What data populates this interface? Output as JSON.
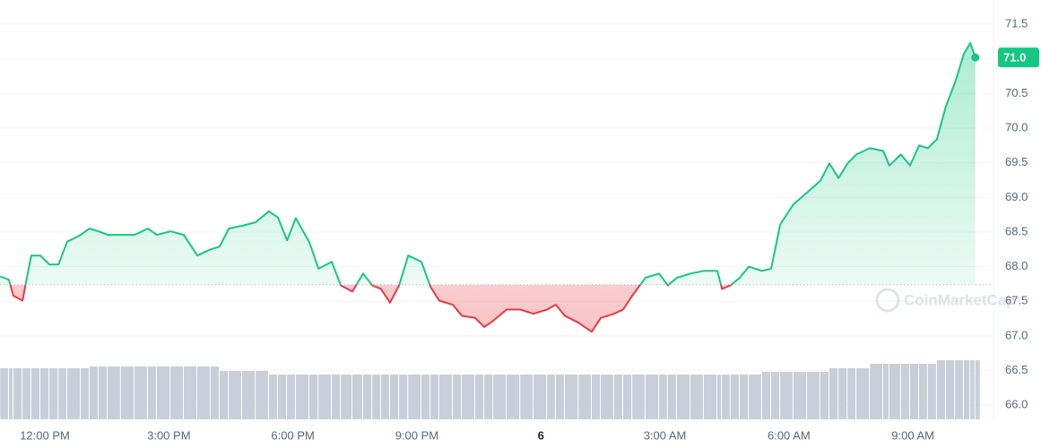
{
  "chart_data": {
    "type": "line",
    "watermark": "CoinMarketCap",
    "color_up": "#16c784",
    "color_down": "#ea3943",
    "volume_color": "#c9ced8",
    "baseline": 67.74,
    "last_price": {
      "value": 71.02,
      "label": "71.0"
    },
    "x": [
      -1.08,
      -0.87,
      -0.76,
      -0.54,
      -0.33,
      -0.11,
      0.11,
      0.33,
      0.54,
      0.87,
      1.08,
      1.3,
      1.52,
      1.84,
      2.17,
      2.49,
      2.71,
      3.04,
      3.36,
      3.69,
      4.01,
      4.23,
      4.45,
      4.77,
      5.1,
      5.42,
      5.64,
      5.86,
      6.07,
      6.4,
      6.62,
      6.94,
      7.16,
      7.44,
      7.7,
      7.92,
      8.13,
      8.35,
      8.57,
      8.79,
      9.11,
      9.33,
      9.54,
      9.87,
      10.09,
      10.41,
      10.63,
      10.85,
      11.17,
      11.5,
      11.82,
      12.15,
      12.36,
      12.58,
      12.91,
      13.23,
      13.45,
      13.77,
      13.99,
      14.21,
      14.53,
      14.86,
      15.07,
      15.29,
      15.62,
      15.94,
      16.27,
      16.38,
      16.59,
      16.81,
      17.03,
      17.35,
      17.57,
      17.79,
      18.11,
      18.44,
      18.76,
      18.98,
      19.2,
      19.42,
      19.63,
      19.96,
      20.28,
      20.43,
      20.71,
      20.93,
      21.15,
      21.36,
      21.58,
      21.8,
      22.02,
      22.23,
      22.39,
      22.51
    ],
    "values": [
      67.86,
      67.81,
      67.58,
      67.51,
      68.16,
      68.16,
      68.03,
      68.03,
      68.36,
      68.46,
      68.55,
      68.51,
      68.46,
      68.46,
      68.46,
      68.55,
      68.46,
      68.51,
      68.46,
      68.16,
      68.25,
      68.29,
      68.55,
      68.59,
      68.64,
      68.8,
      68.71,
      68.38,
      68.7,
      68.35,
      67.97,
      68.07,
      67.73,
      67.64,
      67.9,
      67.73,
      67.68,
      67.48,
      67.73,
      68.16,
      68.07,
      67.71,
      67.51,
      67.45,
      67.29,
      67.26,
      67.13,
      67.22,
      67.38,
      67.38,
      67.32,
      67.38,
      67.45,
      67.29,
      67.19,
      67.06,
      67.26,
      67.32,
      67.38,
      67.58,
      67.84,
      67.9,
      67.73,
      67.84,
      67.9,
      67.94,
      67.94,
      67.68,
      67.73,
      67.84,
      68.0,
      67.94,
      67.97,
      68.61,
      68.9,
      69.07,
      69.24,
      69.49,
      69.28,
      69.49,
      69.62,
      69.71,
      69.67,
      69.46,
      69.62,
      69.46,
      69.75,
      69.71,
      69.84,
      70.32,
      70.66,
      71.07,
      71.23,
      71.02
    ],
    "volume": [
      57,
      57,
      57,
      57,
      57,
      57,
      57,
      57,
      57,
      57,
      59,
      59,
      59,
      59,
      59,
      59,
      59,
      59,
      59,
      59,
      59,
      54,
      54,
      54,
      54,
      50,
      50,
      50,
      50,
      50,
      50,
      50,
      50,
      50,
      50,
      50,
      50,
      50,
      50,
      50,
      50,
      50,
      50,
      50,
      50,
      50,
      50,
      50,
      50,
      50,
      50,
      50,
      50,
      50,
      50,
      50,
      50,
      50,
      50,
      50,
      50,
      50,
      50,
      50,
      50,
      50,
      50,
      50,
      50,
      50,
      50,
      53,
      53,
      53,
      53,
      53,
      53,
      57,
      57,
      57,
      57,
      62,
      62,
      62,
      62,
      62,
      62,
      62,
      66,
      66,
      66,
      66,
      66,
      66
    ],
    "volume_lim": [
      0,
      100
    ],
    "xlim": [
      -1.085,
      22.515
    ],
    "xticks": [
      {
        "value": 0,
        "label": "12:00 PM"
      },
      {
        "value": 3,
        "label": "3:00 PM"
      },
      {
        "value": 6,
        "label": "6:00 PM"
      },
      {
        "value": 9,
        "label": "9:00 PM"
      },
      {
        "value": 12,
        "label": "6"
      },
      {
        "value": 15,
        "label": "3:00 AM"
      },
      {
        "value": 18,
        "label": "6:00 AM"
      },
      {
        "value": 21,
        "label": "9:00 AM"
      }
    ],
    "ylim": [
      65.77,
      71.85
    ],
    "yticks": [
      {
        "value": 66,
        "label": "66.0"
      },
      66.5,
      {
        "value": 67,
        "label": "67.0"
      },
      67.5,
      {
        "value": 68,
        "label": "68.0"
      },
      68.5,
      {
        "value": 69,
        "label": "69.0"
      },
      69.5,
      {
        "value": 70,
        "label": "70.0"
      },
      70.5,
      {
        "value": 71,
        "label": "71.0"
      },
      71.5
    ],
    "grid": true
  }
}
